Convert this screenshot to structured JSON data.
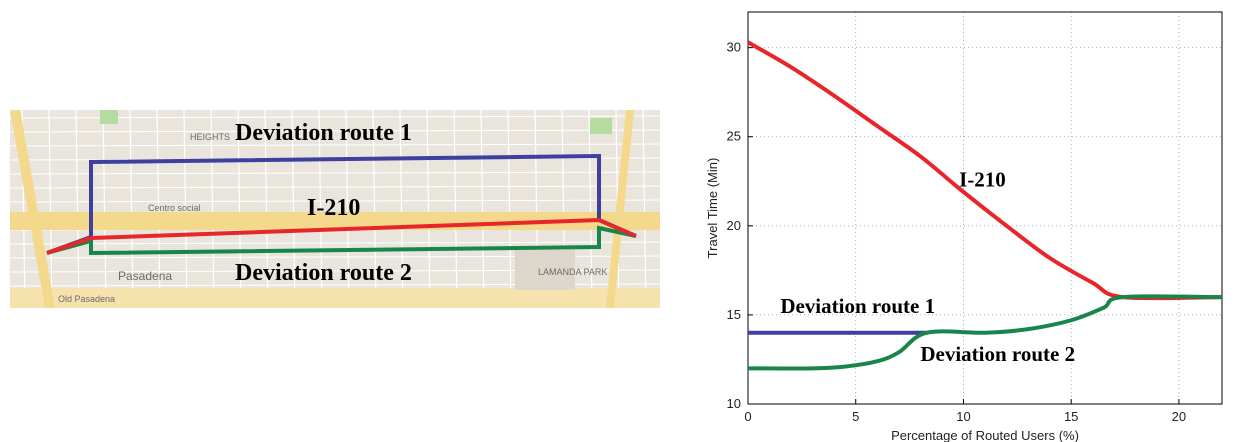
{
  "map": {
    "labels": {
      "route1": "Deviation route 1",
      "i210": "I-210",
      "route2": "Deviation route 2"
    },
    "places": {
      "centro": "Centro social",
      "pasadena": "Pasadena",
      "lamanda": "LAMANDA PARK",
      "heights": "HEIGHTS",
      "oldpasadena": "Old Pasadena"
    },
    "colors": {
      "i210": "#e8262a",
      "route1": "#3f3fa0",
      "route2": "#18864b"
    }
  },
  "chart_data": {
    "type": "line",
    "xlabel": "Percentage of Routed Users (%)",
    "ylabel": "Travel Time (Min)",
    "xlim": [
      0,
      22
    ],
    "ylim": [
      10,
      32
    ],
    "xticks": [
      0,
      5,
      10,
      15,
      20
    ],
    "yticks": [
      10,
      15,
      20,
      25,
      30
    ],
    "grid": true,
    "series": [
      {
        "name": "I-210",
        "color": "#e8262a",
        "points": [
          [
            0,
            30.3
          ],
          [
            2,
            28.9
          ],
          [
            4,
            27.3
          ],
          [
            6,
            25.6
          ],
          [
            8,
            23.9
          ],
          [
            10,
            21.9
          ],
          [
            12,
            20.0
          ],
          [
            14,
            18.2
          ],
          [
            16,
            16.8
          ],
          [
            17.4,
            16.0
          ],
          [
            22,
            16.0
          ]
        ]
      },
      {
        "name": "Deviation route 1",
        "color": "#3f3fa0",
        "points": [
          [
            0,
            14.0
          ],
          [
            8.3,
            14.0
          ]
        ]
      },
      {
        "name": "Deviation route 2",
        "color": "#18864b",
        "points": [
          [
            0,
            12.0
          ],
          [
            3,
            12.0
          ],
          [
            4.5,
            12.1
          ],
          [
            6,
            12.4
          ],
          [
            7,
            12.9
          ],
          [
            8.3,
            14.0
          ],
          [
            11,
            14.0
          ],
          [
            13,
            14.2
          ],
          [
            15,
            14.7
          ],
          [
            16.5,
            15.4
          ],
          [
            17.4,
            16.0
          ],
          [
            22,
            16.0
          ]
        ]
      }
    ],
    "annotations": [
      {
        "text": "I-210",
        "x": 9.8,
        "y": 22.2
      },
      {
        "text": "Deviation route 1",
        "x": 1.5,
        "y": 15.1
      },
      {
        "text": "Deviation route 2",
        "x": 8.0,
        "y": 12.4
      }
    ]
  }
}
